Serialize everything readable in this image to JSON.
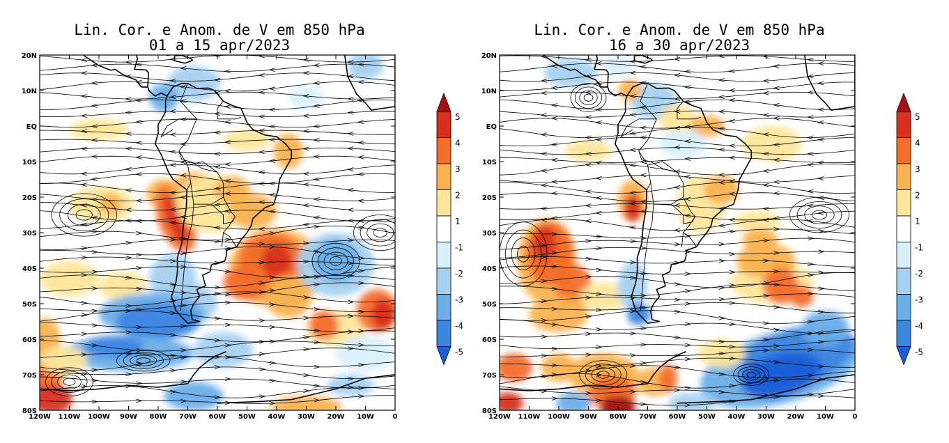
{
  "panels": [
    {
      "title_line1": "Lin. Cor. e Anom. de V em 850 hPa",
      "title_line2": "01 a 15 apr/2023"
    },
    {
      "title_line1": "Lin. Cor. e Anom. de V em 850 hPa",
      "title_line2": "16 a 30 apr/2023"
    }
  ],
  "lat_labels": [
    "20N",
    "10N",
    "EQ",
    "10S",
    "20S",
    "30S",
    "40S",
    "50S",
    "60S",
    "70S",
    "80S"
  ],
  "lon_labels": [
    "120W",
    "110W",
    "100W",
    "90W",
    "80W",
    "70W",
    "60W",
    "50W",
    "40W",
    "30W",
    "20W",
    "10W",
    "0"
  ],
  "colorbar": {
    "labels": [
      "5",
      "4",
      "3",
      "2",
      "1",
      "-1",
      "-2",
      "-3",
      "-4",
      "-5"
    ],
    "colors": [
      "#a50f15",
      "#d7301f",
      "#f46d2a",
      "#f9b24f",
      "#fde69a",
      "#ffffff",
      "#d9f0fb",
      "#a6d1f0",
      "#6aaee8",
      "#3d86e0",
      "#1e5ed8"
    ]
  },
  "anomaly_colors": {
    "neg1": "#d9f0fb",
    "neg2": "#a6d1f0",
    "neg3": "#6aaee8",
    "neg4": "#3d86e0",
    "neg5": "#1e5ed8",
    "pos1": "#fde69a",
    "pos2": "#f9b24f",
    "pos3": "#f46d2a",
    "pos4": "#d7301f",
    "pos5": "#a50f15"
  }
}
